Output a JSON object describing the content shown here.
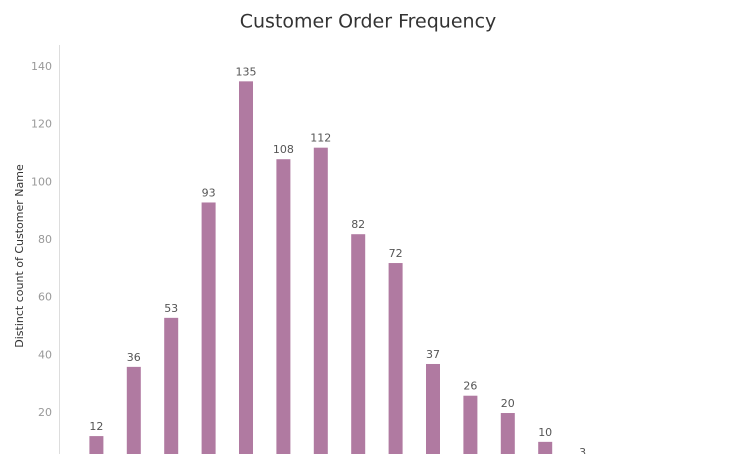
{
  "chart_data": {
    "type": "bar",
    "title": "Customer Order Frequency",
    "y_label": "Distinct count of Customer Name",
    "values": [
      12,
      36,
      53,
      93,
      135,
      108,
      112,
      82,
      72,
      37,
      26,
      20,
      10,
      3
    ],
    "color": "#b07aa1",
    "ylim": [
      0,
      147.6
    ],
    "yticks": [
      20,
      40,
      60,
      80,
      100,
      120,
      140
    ]
  }
}
